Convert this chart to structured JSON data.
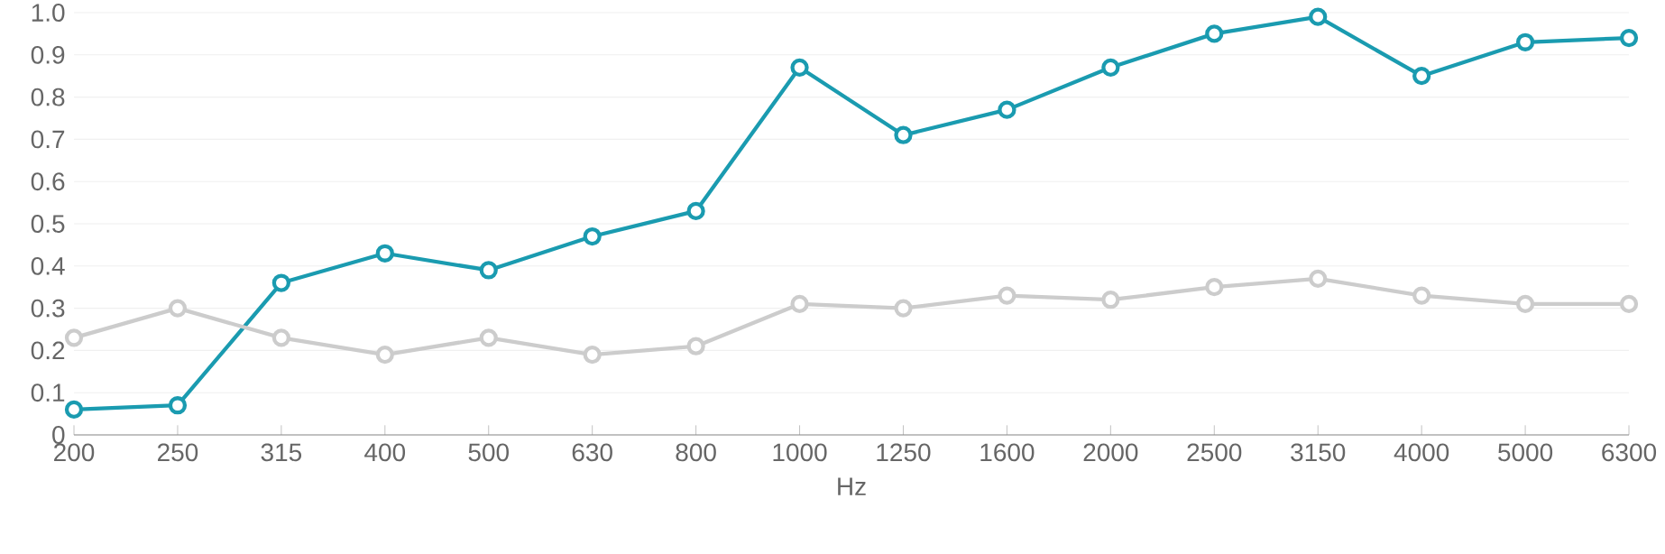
{
  "chart_data": {
    "type": "line",
    "xlabel": "Hz",
    "categories": [
      "200",
      "250",
      "315",
      "400",
      "500",
      "630",
      "800",
      "1000",
      "1250",
      "1600",
      "2000",
      "2500",
      "3150",
      "4000",
      "5000",
      "6300"
    ],
    "series": [
      {
        "color": "#1a9bb0",
        "values": [
          0.06,
          0.07,
          0.36,
          0.43,
          0.39,
          0.47,
          0.53,
          0.87,
          0.71,
          0.77,
          0.87,
          0.95,
          0.99,
          0.85,
          0.93,
          0.94
        ]
      },
      {
        "color": "#cccccc",
        "values": [
          0.23,
          0.3,
          0.23,
          0.19,
          0.23,
          0.19,
          0.21,
          0.31,
          0.3,
          0.33,
          0.32,
          0.35,
          0.37,
          0.33,
          0.31,
          0.31
        ]
      }
    ],
    "ylim": [
      0,
      1
    ],
    "yticks": [
      0,
      0.1,
      0.2,
      0.3,
      0.4,
      0.5,
      0.6,
      0.7,
      0.8,
      0.9,
      {
        "value": 1,
        "label": "1.0"
      }
    ],
    "grid": "y",
    "marker": "circle",
    "line_style": "solid",
    "legend": false
  }
}
